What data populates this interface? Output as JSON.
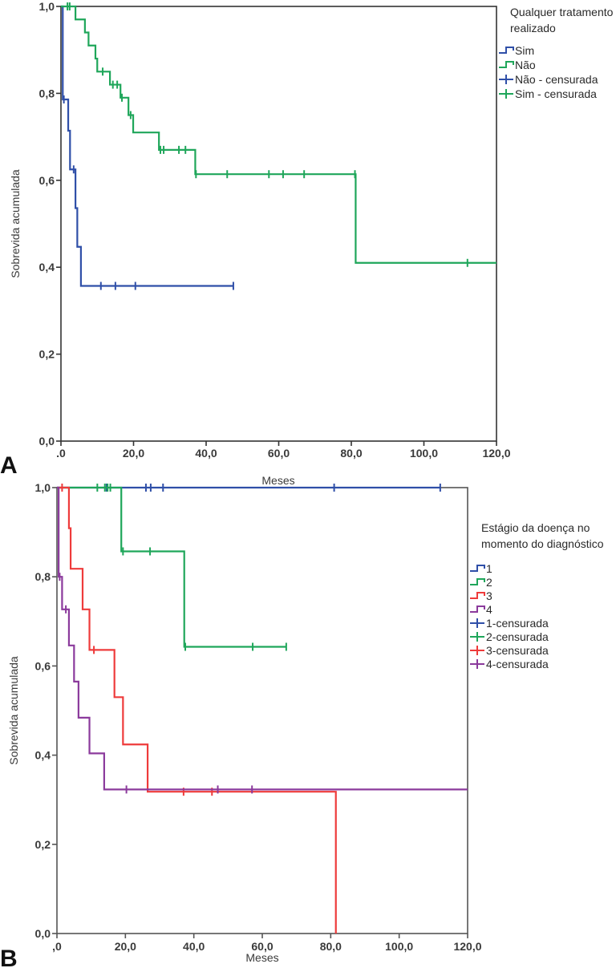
{
  "chart_data": [
    {
      "type": "line",
      "panel_label": "A",
      "title": "",
      "xlabel": "Meses",
      "ylabel": "Sobrevida acumulada",
      "xlim": [
        0,
        120
      ],
      "ylim": [
        0,
        1
      ],
      "x_ticks": [
        ".0",
        "20,0",
        "40,0",
        "60,0",
        "80,0",
        "100,0",
        "120,0"
      ],
      "x_tick_values": [
        0,
        20,
        40,
        60,
        80,
        100,
        120
      ],
      "y_ticks": [
        "0,0",
        "0,2",
        "0,4",
        "0,6",
        "0,8",
        "1,0"
      ],
      "y_tick_values": [
        0,
        0.2,
        0.4,
        0.6,
        0.8,
        1.0
      ],
      "grid": false,
      "legend_title": "Qualquer tratamento realizado",
      "legend_position": "right",
      "legend": [
        {
          "label": "Sim",
          "kind": "step",
          "color": "#2f4fa8"
        },
        {
          "label": "Não",
          "kind": "step",
          "color": "#1fa65a"
        },
        {
          "label": "Não - censurada",
          "kind": "censor",
          "color": "#2f4fa8"
        },
        {
          "label": "Sim - censurada",
          "kind": "censor",
          "color": "#1fa65a"
        }
      ],
      "series": [
        {
          "name": "Sim",
          "color": "#2f4fa8",
          "steps": [
            [
              0,
              1.0
            ],
            [
              0.5,
              0.786
            ],
            [
              2.0,
              0.714
            ],
            [
              2.5,
              0.625
            ],
            [
              4.0,
              0.536
            ],
            [
              4.5,
              0.447
            ],
            [
              5.5,
              0.357
            ]
          ],
          "end": 47.5,
          "censored": [
            [
              0.8,
              0.786
            ],
            [
              3.5,
              0.625
            ],
            [
              11.0,
              0.357
            ],
            [
              15.0,
              0.357
            ],
            [
              20.5,
              0.357
            ],
            [
              47.5,
              0.357
            ]
          ]
        },
        {
          "name": "Não",
          "color": "#1fa65a",
          "steps": [
            [
              0,
              1.0
            ],
            [
              4.0,
              0.97
            ],
            [
              6.6,
              0.94
            ],
            [
              7.6,
              0.91
            ],
            [
              9.5,
              0.88
            ],
            [
              10.0,
              0.85
            ],
            [
              13.5,
              0.82
            ],
            [
              16.4,
              0.79
            ],
            [
              18.6,
              0.75
            ],
            [
              19.9,
              0.71
            ],
            [
              27.0,
              0.67
            ],
            [
              37.0,
              0.614
            ],
            [
              81.2,
              0.41
            ]
          ],
          "end": 120,
          "censored": [
            [
              1.8,
              1.0
            ],
            [
              2.4,
              1.0
            ],
            [
              11.5,
              0.85
            ],
            [
              14.3,
              0.82
            ],
            [
              15.5,
              0.82
            ],
            [
              16.8,
              0.79
            ],
            [
              19.2,
              0.75
            ],
            [
              27.4,
              0.67
            ],
            [
              28.3,
              0.67
            ],
            [
              32.5,
              0.67
            ],
            [
              34.3,
              0.67
            ],
            [
              37.2,
              0.614
            ],
            [
              45.8,
              0.614
            ],
            [
              57.3,
              0.614
            ],
            [
              61.2,
              0.614
            ],
            [
              67.0,
              0.614
            ],
            [
              81.0,
              0.614
            ],
            [
              112.0,
              0.41
            ]
          ]
        }
      ]
    },
    {
      "type": "line",
      "panel_label": "B",
      "title": "",
      "xlabel": "Meses",
      "ylabel": "Sobrevida acumulada",
      "xlim": [
        0,
        120
      ],
      "ylim": [
        0,
        1
      ],
      "x_ticks": [
        ",0",
        "20,0",
        "40,0",
        "60,0",
        "80,0",
        "100,0",
        "120,0"
      ],
      "x_tick_values": [
        0,
        20,
        40,
        60,
        80,
        100,
        120
      ],
      "y_ticks": [
        "0,0",
        "0,2",
        "0,4",
        "0,6",
        "0,8",
        "1,0"
      ],
      "y_tick_values": [
        0,
        0.2,
        0.4,
        0.6,
        0.8,
        1.0
      ],
      "grid": false,
      "legend_title": "Estágio da doença no momento do diagnóstico",
      "legend_position": "right",
      "legend": [
        {
          "label": "1",
          "kind": "step",
          "color": "#2f4fa8"
        },
        {
          "label": "2",
          "kind": "step",
          "color": "#1fa65a"
        },
        {
          "label": "3",
          "kind": "step",
          "color": "#ee3b3b"
        },
        {
          "label": "4",
          "kind": "step",
          "color": "#8b3a9c"
        },
        {
          "label": "1-censurada",
          "kind": "censor",
          "color": "#2f4fa8"
        },
        {
          "label": "2-censurada",
          "kind": "censor",
          "color": "#1fa65a"
        },
        {
          "label": "3-censurada",
          "kind": "censor",
          "color": "#ee3b3b"
        },
        {
          "label": "4-censurada",
          "kind": "censor",
          "color": "#8b3a9c"
        }
      ],
      "series": [
        {
          "name": "1",
          "color": "#2f4fa8",
          "steps": [
            [
              0,
              1.0
            ]
          ],
          "end": 112.0,
          "censored": [
            [
              14.5,
              1.0
            ],
            [
              26.0,
              1.0
            ],
            [
              27.4,
              1.0
            ],
            [
              31.0,
              1.0
            ],
            [
              81.0,
              1.0
            ],
            [
              112.0,
              1.0
            ]
          ]
        },
        {
          "name": "2",
          "color": "#1fa65a",
          "steps": [
            [
              0,
              1.0
            ],
            [
              18.8,
              0.857
            ],
            [
              37.2,
              0.643
            ]
          ],
          "end": 67.0,
          "censored": [
            [
              11.8,
              1.0
            ],
            [
              14.0,
              1.0
            ],
            [
              14.8,
              1.0
            ],
            [
              15.6,
              1.0
            ],
            [
              19.3,
              0.857
            ],
            [
              27.2,
              0.857
            ],
            [
              37.5,
              0.643
            ],
            [
              57.2,
              0.643
            ],
            [
              67.0,
              0.643
            ]
          ]
        },
        {
          "name": "3",
          "color": "#ee3b3b",
          "steps": [
            [
              0,
              1.0
            ],
            [
              3.5,
              0.909
            ],
            [
              4.0,
              0.818
            ],
            [
              7.5,
              0.727
            ],
            [
              9.5,
              0.636
            ],
            [
              16.8,
              0.53
            ],
            [
              19.3,
              0.424
            ],
            [
              26.5,
              0.318
            ],
            [
              81.5,
              0.0
            ]
          ],
          "end": 81.5,
          "censored": [
            [
              1.5,
              1.0
            ],
            [
              10.8,
              0.636
            ],
            [
              37.0,
              0.318
            ],
            [
              45.3,
              0.318
            ]
          ]
        },
        {
          "name": "4",
          "color": "#8b3a9c",
          "steps": [
            [
              0,
              1.0
            ],
            [
              0.5,
              0.8
            ],
            [
              1.5,
              0.727
            ],
            [
              3.5,
              0.646
            ],
            [
              5.0,
              0.565
            ],
            [
              6.3,
              0.484
            ],
            [
              9.5,
              0.404
            ],
            [
              13.8,
              0.323
            ]
          ],
          "end": 120,
          "censored": [
            [
              0.8,
              0.8
            ],
            [
              2.6,
              0.727
            ],
            [
              20.3,
              0.323
            ],
            [
              47.0,
              0.323
            ],
            [
              57.0,
              0.323
            ]
          ]
        }
      ]
    }
  ]
}
